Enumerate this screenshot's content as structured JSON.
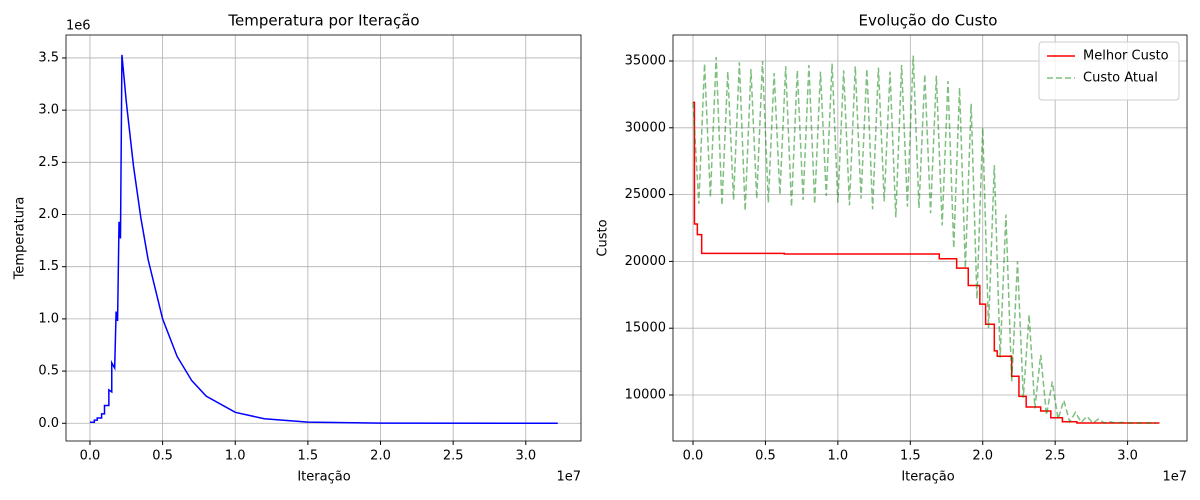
{
  "chart_data": [
    {
      "type": "line",
      "title": "Temperatura por Iteração",
      "xlabel": "Iteração",
      "ylabel": "Temperatura",
      "x_offset_label": "1e7",
      "y_offset_label": "1e6",
      "xlim": [
        -0.165,
        3.38
      ],
      "ylim": [
        -0.17,
        3.72
      ],
      "grid": true,
      "color": "blue",
      "xticks": [
        {
          "value": 0,
          "label": "0.0"
        },
        0.5,
        {
          "value": 1,
          "label": "1.0"
        },
        1.5,
        {
          "value": 2,
          "label": "2.0"
        },
        2.5,
        {
          "value": 3,
          "label": "3.0"
        }
      ],
      "yticks": [
        {
          "value": 0,
          "label": "0.0"
        },
        0.5,
        {
          "value": 1,
          "label": "1.0"
        },
        1.5,
        {
          "value": 2,
          "label": "2.0"
        },
        2.5,
        {
          "value": 3,
          "label": "3.0"
        },
        3.5
      ],
      "x": [
        0,
        0.03,
        0.03,
        0.05,
        0.05,
        0.08,
        0.08,
        0.1,
        0.1,
        0.13,
        0.13,
        0.15,
        0.15,
        0.17,
        0.18,
        0.19,
        0.2,
        0.21,
        0.22,
        0.25,
        0.3,
        0.35,
        0.4,
        0.5,
        0.6,
        0.7,
        0.8,
        1.0,
        1.2,
        1.5,
        2.0,
        3.22
      ],
      "values": [
        0.01,
        0.01,
        0.03,
        0.03,
        0.05,
        0.05,
        0.09,
        0.09,
        0.17,
        0.17,
        0.32,
        0.3,
        0.58,
        0.53,
        1.07,
        0.98,
        1.93,
        1.77,
        3.53,
        3.08,
        2.46,
        1.97,
        1.57,
        1.0,
        0.64,
        0.41,
        0.26,
        0.105,
        0.043,
        0.011,
        0.001,
        0
      ]
    },
    {
      "type": "line",
      "title": "Evolução do Custo",
      "xlabel": "Iteração",
      "ylabel": "Custo",
      "x_offset_label": "1e7",
      "xlim": [
        -0.138,
        3.41
      ],
      "ylim": [
        6557,
        36946
      ],
      "grid": true,
      "legend": "upper right",
      "xticks": [
        {
          "value": 0,
          "label": "0.0"
        },
        0.5,
        {
          "value": 1,
          "label": "1.0"
        },
        1.5,
        {
          "value": 2,
          "label": "2.0"
        },
        2.5,
        {
          "value": 3,
          "label": "3.0"
        }
      ],
      "yticks": [
        10000,
        15000,
        20000,
        25000,
        30000,
        35000
      ],
      "series": [
        {
          "name": "Melhor Custo",
          "color": "red",
          "linestyle": "solid",
          "alpha": 1,
          "x": [
            0,
            0.01,
            0.01,
            0.03,
            0.03,
            0.06,
            0.06,
            0.63,
            0.63,
            1.7,
            1.7,
            1.82,
            1.82,
            1.9,
            1.9,
            1.98,
            1.98,
            2.02,
            2.02,
            2.08,
            2.08,
            2.1,
            2.1,
            2.2,
            2.2,
            2.25,
            2.25,
            2.3,
            2.3,
            2.4,
            2.4,
            2.47,
            2.47,
            2.55,
            2.55,
            2.65,
            2.65,
            3.22
          ],
          "values": [
            31900,
            31900,
            22800,
            22800,
            22000,
            22000,
            20600,
            20600,
            20550,
            20550,
            20200,
            20200,
            19500,
            19500,
            18200,
            18200,
            16800,
            16800,
            15300,
            15300,
            13300,
            13300,
            12900,
            12900,
            11400,
            11400,
            9900,
            9900,
            9100,
            9100,
            8800,
            8800,
            8300,
            8300,
            8000,
            8000,
            7900,
            7900
          ]
        },
        {
          "name": "Custo Atual",
          "color": "green",
          "linestyle": "dashed",
          "alpha": 0.5,
          "x": [
            0,
            0.04,
            0.08,
            0.12,
            0.16,
            0.2,
            0.24,
            0.28,
            0.32,
            0.36,
            0.4,
            0.44,
            0.48,
            0.52,
            0.56,
            0.6,
            0.64,
            0.68,
            0.72,
            0.76,
            0.8,
            0.84,
            0.88,
            0.92,
            0.96,
            1.0,
            1.04,
            1.08,
            1.12,
            1.16,
            1.2,
            1.24,
            1.28,
            1.32,
            1.36,
            1.4,
            1.44,
            1.48,
            1.52,
            1.56,
            1.6,
            1.64,
            1.68,
            1.72,
            1.76,
            1.8,
            1.84,
            1.88,
            1.92,
            1.96,
            2.0,
            2.04,
            2.08,
            2.12,
            2.16,
            2.2,
            2.24,
            2.28,
            2.32,
            2.36,
            2.4,
            2.44,
            2.48,
            2.52,
            2.56,
            2.6,
            2.64,
            2.68,
            2.72,
            2.76,
            2.8,
            2.84,
            2.88,
            2.92,
            2.96,
            3.0,
            3.04,
            3.08,
            3.12,
            3.16,
            3.2
          ],
          "values": [
            31900,
            24300,
            34800,
            24800,
            35300,
            24200,
            34200,
            24600,
            34900,
            23800,
            34400,
            24700,
            35000,
            24400,
            34100,
            25000,
            34600,
            24100,
            34300,
            24600,
            34700,
            24300,
            34200,
            24900,
            34800,
            24400,
            34300,
            24200,
            34600,
            24700,
            34400,
            23900,
            34500,
            24500,
            34200,
            23300,
            34700,
            24100,
            35400,
            24000,
            34000,
            23600,
            33900,
            22700,
            33500,
            21000,
            33000,
            19500,
            31800,
            17200,
            30000,
            15000,
            27200,
            12800,
            23500,
            11000,
            20000,
            9800,
            16000,
            9000,
            13000,
            8500,
            11000,
            8200,
            9600,
            8000,
            8700,
            7950,
            8400,
            7900,
            8200,
            7900,
            8000,
            7900,
            7950,
            7900,
            7900,
            7900,
            7900,
            7900,
            7900
          ]
        }
      ]
    }
  ]
}
